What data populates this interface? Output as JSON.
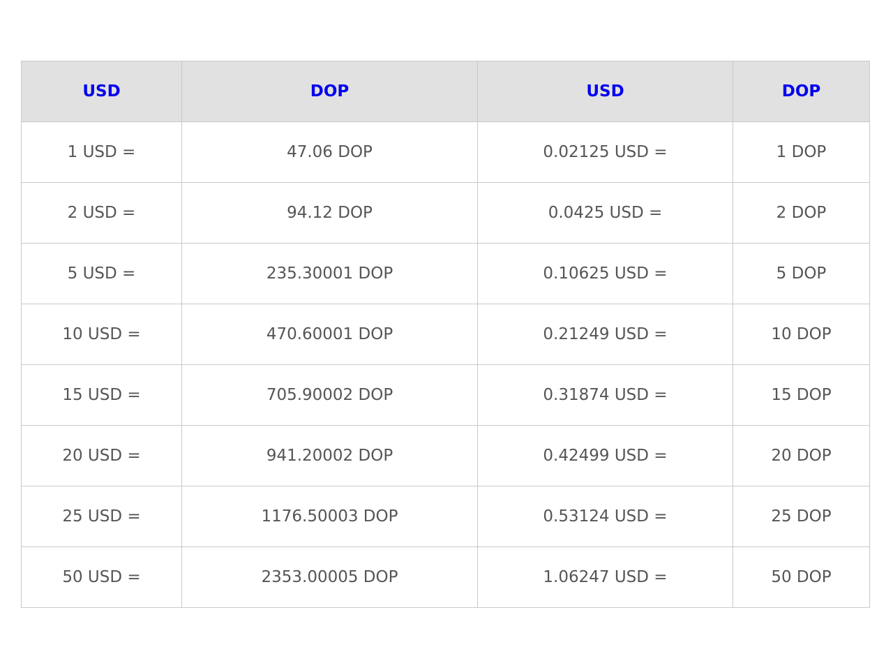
{
  "colors": {
    "header_text": "#0000ee",
    "header_bg": "#e1e1e1",
    "cell_text": "#555555",
    "border": "#c9c9c9"
  },
  "table": {
    "headers": [
      "USD",
      "DOP",
      "USD",
      "DOP"
    ],
    "rows": [
      [
        "1 USD =",
        "47.06 DOP",
        "0.02125 USD =",
        "1 DOP"
      ],
      [
        "2 USD =",
        "94.12 DOP",
        "0.0425 USD =",
        "2 DOP"
      ],
      [
        "5 USD =",
        "235.30001 DOP",
        "0.10625 USD =",
        "5 DOP"
      ],
      [
        "10 USD =",
        "470.60001 DOP",
        "0.21249 USD =",
        "10 DOP"
      ],
      [
        "15 USD =",
        "705.90002 DOP",
        "0.31874 USD =",
        "15 DOP"
      ],
      [
        "20 USD =",
        "941.20002 DOP",
        "0.42499 USD =",
        "20 DOP"
      ],
      [
        "25 USD =",
        "1176.50003 DOP",
        "0.53124 USD =",
        "25 DOP"
      ],
      [
        "50 USD =",
        "2353.00005 DOP",
        "1.06247 USD =",
        "50 DOP"
      ]
    ]
  }
}
